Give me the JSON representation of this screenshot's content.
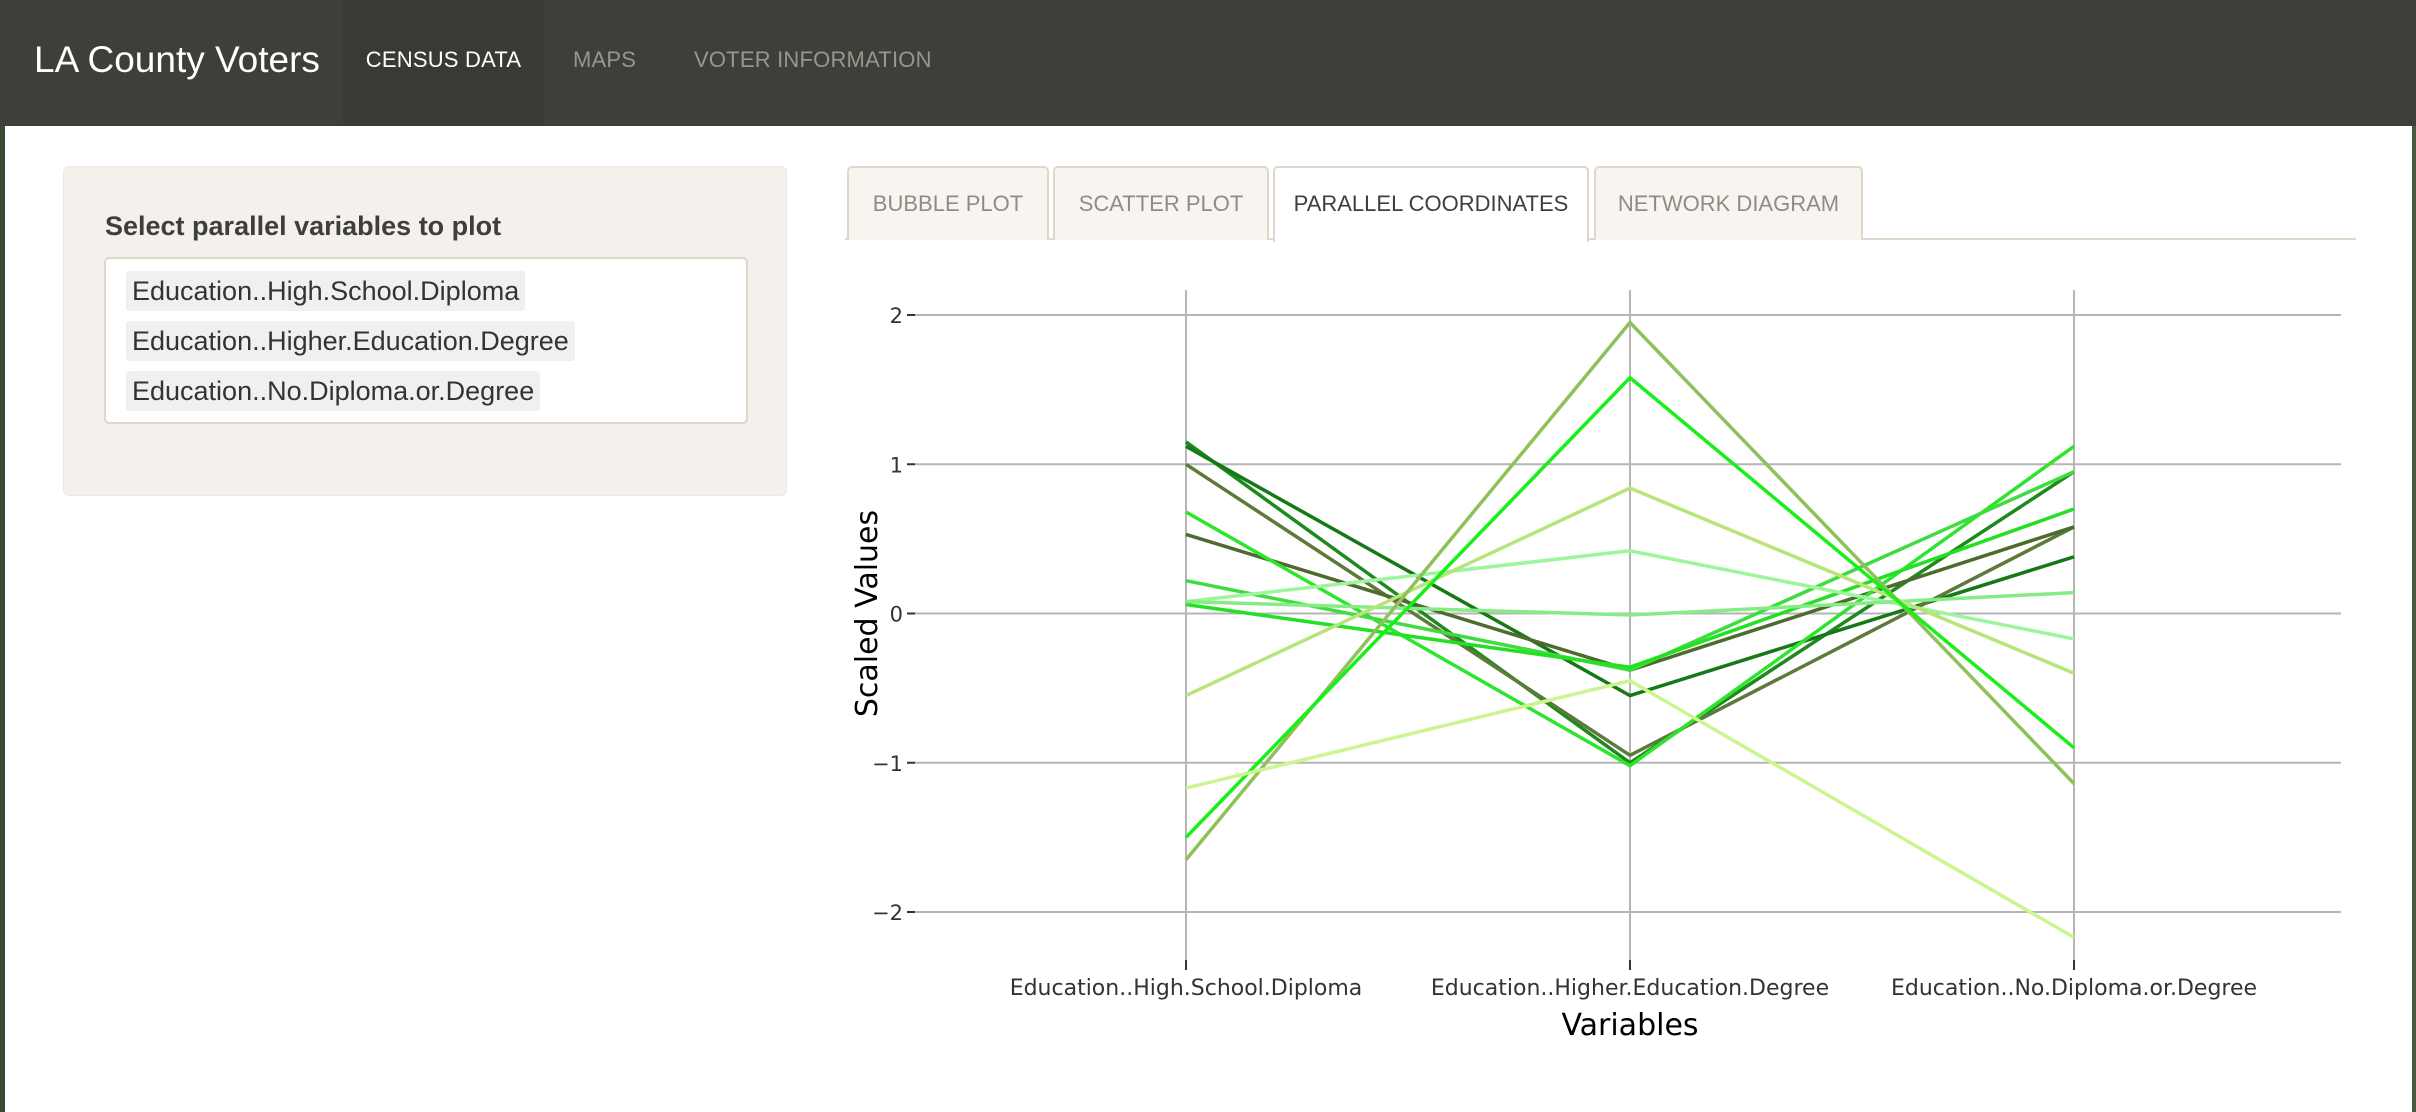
{
  "navbar": {
    "brand": "LA County Voters",
    "items": [
      {
        "label": "CENSUS DATA",
        "active": true
      },
      {
        "label": "MAPS",
        "active": false
      },
      {
        "label": "VOTER INFORMATION",
        "active": false
      }
    ]
  },
  "sidebar": {
    "label": "Select parallel variables to plot",
    "selected": [
      "Education..High.School.Diploma",
      "Education..Higher.Education.Degree",
      "Education..No.Diploma.or.Degree"
    ]
  },
  "tabs": [
    {
      "label": "BUBBLE PLOT",
      "active": false
    },
    {
      "label": "SCATTER PLOT",
      "active": false
    },
    {
      "label": "PARALLEL COORDINATES",
      "active": true
    },
    {
      "label": "NETWORK DIAGRAM",
      "active": false
    }
  ],
  "chart_data": {
    "type": "line",
    "ylabel": "Scaled Values",
    "xlabel": "Variables",
    "categories": [
      "Education..High.School.Diploma",
      "Education..Higher.Education.Degree",
      "Education..No.Diploma.or.Degree"
    ],
    "ylim": [
      -2.3,
      2.2
    ],
    "yticks": [
      -2,
      -1,
      0,
      1,
      2
    ],
    "grid": true,
    "legend": "none",
    "series": [
      {
        "values": [
          1.15,
          -1.0,
          0.95
        ],
        "color": "#1e8a1e"
      },
      {
        "values": [
          1.12,
          -0.55,
          0.38
        ],
        "color": "#157a15"
      },
      {
        "values": [
          1.0,
          -0.95,
          0.58
        ],
        "color": "#5e7a3a"
      },
      {
        "values": [
          0.53,
          -0.38,
          0.58
        ],
        "color": "#4e6b2e"
      },
      {
        "values": [
          0.68,
          -1.02,
          1.12
        ],
        "color": "#2ee52e"
      },
      {
        "values": [
          0.22,
          -0.38,
          0.95
        ],
        "color": "#3fdc3f"
      },
      {
        "values": [
          0.06,
          -0.36,
          0.7
        ],
        "color": "#22e022"
      },
      {
        "values": [
          0.08,
          0.42,
          -0.17
        ],
        "color": "#9ef59e"
      },
      {
        "values": [
          0.08,
          -0.01,
          0.14
        ],
        "color": "#86ec86"
      },
      {
        "values": [
          -0.55,
          0.84,
          -0.4
        ],
        "color": "#b7e57b"
      },
      {
        "values": [
          -1.65,
          1.95,
          -1.14
        ],
        "color": "#8fc05a"
      },
      {
        "values": [
          -1.5,
          1.58,
          -0.9
        ],
        "color": "#19ef19"
      },
      {
        "values": [
          -1.17,
          -0.45,
          -2.17
        ],
        "color": "#cbf58f"
      }
    ]
  }
}
